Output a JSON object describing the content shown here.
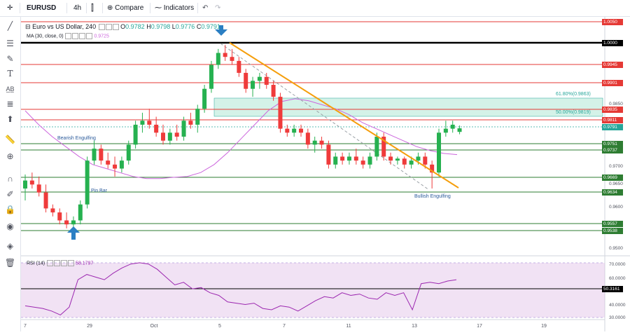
{
  "toolbar": {
    "symbol": "EURUSD",
    "interval": "4h",
    "compare_label": "Compare",
    "indicators_label": "Indicators"
  },
  "legend": {
    "title": "Euro vs US Dollar, 240",
    "open_label": "O",
    "open": "0.9782",
    "high_label": "H",
    "high": "0.9798",
    "low_label": "L",
    "low": "0.9776",
    "close_label": "C",
    "close": "0.9791",
    "ma_label": "MA (30, close, 0)",
    "ma_value": "0.9725",
    "rsi_label": "RSI (14)",
    "rsi_value": "58.1797"
  },
  "annotations": {
    "bearish_engulfing": "Bearish Engulfing",
    "pin_bar": "Pin Bar",
    "bullish_engulfing": "Bullish Engulfing",
    "fib_618": "61.80%(0.9863)",
    "fib_50": "50.00%(0.9819)"
  },
  "price_axis": {
    "ticks": [
      "0.9850",
      "0.9700",
      "0.9650",
      "0.9600",
      "0.9500"
    ],
    "labels": [
      {
        "text": "1.0050",
        "color": "#e53935",
        "kind": "red"
      },
      {
        "text": "1.0000",
        "color": "#000000",
        "kind": "black"
      },
      {
        "text": "0.9945",
        "color": "#e53935",
        "kind": "red"
      },
      {
        "text": "0.9901",
        "color": "#e53935",
        "kind": "red"
      },
      {
        "text": "0.9835",
        "color": "#e53935",
        "kind": "red"
      },
      {
        "text": "0.9811",
        "color": "#e53935",
        "kind": "red"
      },
      {
        "text": "0.9791",
        "color": "#26a69a",
        "kind": "current"
      },
      {
        "text": "0.9751",
        "color": "#2e7d32",
        "kind": "green"
      },
      {
        "text": "0.9737",
        "color": "#2e7d32",
        "kind": "green"
      },
      {
        "text": "0.9669",
        "color": "#2e7d32",
        "kind": "green"
      },
      {
        "text": "0.9634",
        "color": "#2e7d32",
        "kind": "green"
      },
      {
        "text": "0.9557",
        "color": "#2e7d32",
        "kind": "green"
      },
      {
        "text": "0.9538",
        "color": "#2e7d32",
        "kind": "green"
      }
    ]
  },
  "rsi_axis": {
    "ticks": [
      "70.0000",
      "60.0000",
      "40.0000",
      "30.0000"
    ],
    "level_label": "50.3161"
  },
  "time_axis": [
    "7",
    "29",
    "Oct",
    "5",
    "7",
    "11",
    "13",
    "17",
    "19"
  ],
  "chart_data": {
    "type": "candlestick",
    "series": [
      {
        "values": [
          [
            0.964,
            0.9675,
            0.961,
            0.966
          ],
          [
            0.966,
            0.968,
            0.964,
            0.965
          ],
          [
            0.965,
            0.967,
            0.962,
            0.963
          ],
          [
            0.963,
            0.965,
            0.958,
            0.959
          ],
          [
            0.959,
            0.96,
            0.957,
            0.958
          ],
          [
            0.958,
            0.959,
            0.955,
            0.956
          ],
          [
            0.956,
            0.958,
            0.954,
            0.955
          ],
          [
            0.955,
            0.957,
            0.954,
            0.956
          ],
          [
            0.956,
            0.961,
            0.955,
            0.96
          ],
          [
            0.96,
            0.972,
            0.959,
            0.971
          ],
          [
            0.971,
            0.976,
            0.97,
            0.974
          ],
          [
            0.974,
            0.975,
            0.97,
            0.971
          ],
          [
            0.971,
            0.973,
            0.969,
            0.97
          ],
          [
            0.97,
            0.972,
            0.967,
            0.969
          ],
          [
            0.969,
            0.972,
            0.968,
            0.971
          ],
          [
            0.971,
            0.976,
            0.97,
            0.975
          ],
          [
            0.975,
            0.981,
            0.974,
            0.98
          ],
          [
            0.98,
            0.983,
            0.978,
            0.981
          ],
          [
            0.981,
            0.984,
            0.979,
            0.98
          ],
          [
            0.98,
            0.982,
            0.977,
            0.978
          ],
          [
            0.978,
            0.98,
            0.975,
            0.976
          ],
          [
            0.976,
            0.979,
            0.975,
            0.978
          ],
          [
            0.978,
            0.98,
            0.976,
            0.977
          ],
          [
            0.977,
            0.982,
            0.976,
            0.981
          ],
          [
            0.981,
            0.983,
            0.979,
            0.98
          ],
          [
            0.98,
            0.985,
            0.978,
            0.984
          ],
          [
            0.984,
            0.99,
            0.983,
            0.989
          ],
          [
            0.989,
            0.996,
            0.988,
            0.995
          ],
          [
            0.995,
            0.999,
            0.994,
            0.998
          ],
          [
            0.998,
            1.0,
            0.996,
            0.997
          ],
          [
            0.997,
            0.999,
            0.995,
            0.996
          ],
          [
            0.996,
            0.997,
            0.992,
            0.993
          ],
          [
            0.993,
            0.994,
            0.988,
            0.989
          ],
          [
            0.989,
            0.992,
            0.987,
            0.991
          ],
          [
            0.991,
            0.993,
            0.989,
            0.992
          ],
          [
            0.992,
            0.993,
            0.989,
            0.99
          ],
          [
            0.99,
            0.991,
            0.986,
            0.987
          ],
          [
            0.987,
            0.988,
            0.978,
            0.979
          ],
          [
            0.979,
            0.98,
            0.977,
            0.978
          ],
          [
            0.978,
            0.98,
            0.977,
            0.979
          ],
          [
            0.979,
            0.98,
            0.977,
            0.978
          ],
          [
            0.978,
            0.979,
            0.974,
            0.975
          ],
          [
            0.975,
            0.977,
            0.973,
            0.976
          ],
          [
            0.976,
            0.977,
            0.974,
            0.975
          ],
          [
            0.975,
            0.976,
            0.969,
            0.97
          ],
          [
            0.97,
            0.973,
            0.969,
            0.972
          ],
          [
            0.972,
            0.973,
            0.97,
            0.971
          ],
          [
            0.971,
            0.973,
            0.97,
            0.972
          ],
          [
            0.972,
            0.974,
            0.97,
            0.971
          ],
          [
            0.971,
            0.972,
            0.969,
            0.97
          ],
          [
            0.97,
            0.973,
            0.969,
            0.972
          ],
          [
            0.972,
            0.978,
            0.971,
            0.977
          ],
          [
            0.977,
            0.978,
            0.971,
            0.972
          ],
          [
            0.972,
            0.973,
            0.97,
            0.971
          ],
          [
            0.971,
            0.972,
            0.97,
            0.9715
          ],
          [
            0.9715,
            0.972,
            0.969,
            0.97
          ],
          [
            0.97,
            0.972,
            0.969,
            0.971
          ],
          [
            0.971,
            0.973,
            0.97,
            0.972
          ],
          [
            0.972,
            0.973,
            0.969,
            0.97
          ],
          [
            0.97,
            0.971,
            0.964,
            0.968
          ],
          [
            0.968,
            0.979,
            0.967,
            0.978
          ],
          [
            0.978,
            0.981,
            0.977,
            0.979
          ],
          [
            0.979,
            0.981,
            0.978,
            0.98
          ],
          [
            0.9782,
            0.9798,
            0.9776,
            0.9791
          ]
        ]
      },
      {
        "name": "MA (30, close, 0)",
        "values": [
          0.9835,
          0.98,
          0.977,
          0.9745,
          0.972,
          0.97,
          0.969,
          0.968,
          0.967,
          0.9665,
          0.9665,
          0.9668,
          0.967,
          0.968,
          0.97,
          0.973,
          0.9765,
          0.98,
          0.9835,
          0.9858,
          0.9865,
          0.986,
          0.985,
          0.984,
          0.9825,
          0.9805,
          0.979,
          0.9775,
          0.976,
          0.9745,
          0.9735,
          0.9728,
          0.9725
        ]
      },
      {
        "name": "RSI (14)",
        "values": [
          38,
          37,
          36,
          34,
          31,
          37,
          58,
          62,
          60,
          58,
          63,
          67,
          70,
          71,
          70,
          66,
          60,
          54,
          56,
          51,
          52,
          48,
          46,
          41,
          40,
          39,
          40,
          36,
          35,
          38,
          37,
          34,
          38,
          42,
          45,
          44,
          48,
          46,
          47,
          44,
          43,
          48,
          46,
          48,
          35,
          55,
          56,
          55,
          57,
          58
        ]
      }
    ],
    "ylim": [
      0.948,
      1.006
    ],
    "rsi_ylim": [
      28,
      72
    ]
  }
}
